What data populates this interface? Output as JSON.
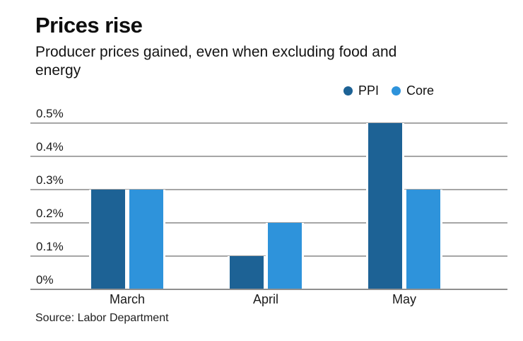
{
  "header": {
    "title": "Prices rise",
    "subtitle": "Producer prices gained, even when excluding food and energy",
    "subtitle_line1": "Producer prices gained, even when excluding food and",
    "subtitle_line2": "energy"
  },
  "chart_data": {
    "type": "bar",
    "title": "Prices rise",
    "subtitle": "Producer prices gained, even when excluding food and energy",
    "categories": [
      "March",
      "April",
      "May"
    ],
    "series": [
      {
        "name": "PPI",
        "color": "#1d6295",
        "values": [
          0.3,
          0.1,
          0.5
        ]
      },
      {
        "name": "Core",
        "color": "#2e93db",
        "values": [
          0.3,
          0.2,
          0.3
        ]
      }
    ],
    "xlabel": "",
    "ylabel": "",
    "ylim": [
      0,
      0.5
    ],
    "y_ticks": [
      {
        "value": 0.5,
        "label": "0.5%"
      },
      {
        "value": 0.4,
        "label": "0.4%"
      },
      {
        "value": 0.3,
        "label": "0.3%"
      },
      {
        "value": 0.2,
        "label": "0.2%"
      },
      {
        "value": 0.1,
        "label": "0.1%"
      },
      {
        "value": 0.0,
        "label": "0%"
      }
    ],
    "grid": "horizontal",
    "legend_position": "top-right"
  },
  "footer": {
    "source": "Source: Labor Department"
  },
  "colors": {
    "ppi": "#1d6295",
    "core": "#2e93db",
    "gridline": "#a6a6a6",
    "baseline": "#8f8f8f",
    "text": "#1a1a1a"
  }
}
